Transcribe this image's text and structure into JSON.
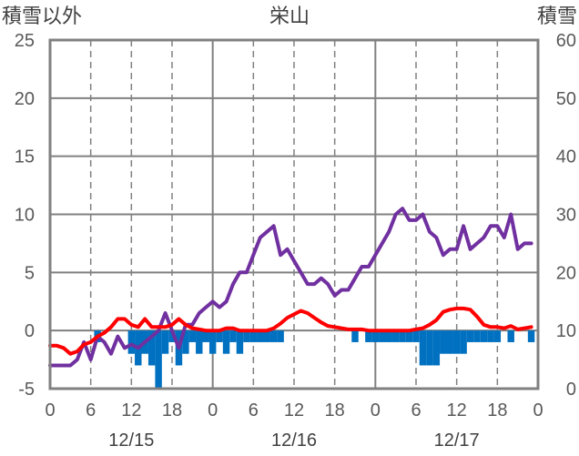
{
  "chart_data": {
    "type": "line+bar",
    "title": "栄山",
    "left_axis_title": "積雪以外",
    "right_axis_title": "積雪",
    "left_ylim": [
      -5,
      25
    ],
    "right_ylim": [
      0,
      60
    ],
    "left_ticks": [
      "25",
      "20",
      "15",
      "10",
      "5",
      "0",
      "-5"
    ],
    "right_ticks": [
      "60",
      "50",
      "40",
      "30",
      "20",
      "10",
      "0"
    ],
    "x_ticks": [
      "0",
      "6",
      "12",
      "18",
      "0",
      "6",
      "12",
      "18",
      "0",
      "6",
      "12",
      "18",
      "0"
    ],
    "dates": [
      "12/15",
      "12/16",
      "12/17"
    ],
    "x_range_hours": [
      0,
      72
    ],
    "grid": "dashed at 6h marks, solid at day boundaries and horizontal lines",
    "series": [
      {
        "name": "purple-line",
        "color": "#7030a0",
        "axis": "left",
        "x": [
          0,
          1,
          2,
          3,
          4,
          5,
          6,
          7,
          8,
          9,
          10,
          11,
          12,
          13,
          14,
          15,
          16,
          17,
          18,
          19,
          20,
          21,
          22,
          23,
          24,
          25,
          26,
          27,
          28,
          29,
          30,
          31,
          32,
          33,
          34,
          35,
          36,
          37,
          38,
          39,
          40,
          41,
          42,
          43,
          44,
          45,
          46,
          47,
          48,
          49,
          50,
          51,
          52,
          53,
          54,
          55,
          56,
          57,
          58,
          59,
          60,
          61,
          62,
          63,
          64,
          65,
          66,
          67,
          68,
          69,
          70,
          71
        ],
        "values": [
          -3,
          -3,
          -3,
          -3,
          -2.5,
          -1,
          -2.5,
          -0.5,
          -1,
          -2,
          -0.5,
          -1.5,
          -1.2,
          -1.5,
          -1,
          -0.5,
          0,
          1.5,
          0,
          -1.5,
          0.5,
          0.5,
          1.5,
          2,
          2.5,
          2,
          2.5,
          4,
          5,
          5,
          6.5,
          8,
          8.5,
          9,
          6.5,
          7,
          6,
          5,
          4,
          4,
          4.5,
          4,
          3,
          3.5,
          3.5,
          4.5,
          5.5,
          5.5,
          6.5,
          7.5,
          8.5,
          10,
          10.5,
          9.5,
          9.5,
          10,
          8.5,
          8,
          6.5,
          7,
          7,
          9,
          7,
          7.5,
          8,
          9,
          9,
          8,
          10,
          7,
          7.5,
          7.5
        ]
      },
      {
        "name": "red-line",
        "color": "#ff0000",
        "axis": "left",
        "x": [
          0,
          1,
          2,
          3,
          4,
          5,
          6,
          7,
          8,
          9,
          10,
          11,
          12,
          13,
          14,
          15,
          16,
          17,
          18,
          19,
          20,
          21,
          22,
          23,
          24,
          25,
          26,
          27,
          28,
          29,
          30,
          31,
          32,
          33,
          34,
          35,
          36,
          37,
          38,
          39,
          40,
          41,
          42,
          43,
          44,
          45,
          46,
          47,
          48,
          49,
          50,
          51,
          52,
          53,
          54,
          55,
          56,
          57,
          58,
          59,
          60,
          61,
          62,
          63,
          64,
          65,
          66,
          67,
          68,
          69,
          70,
          71
        ],
        "values": [
          -1.3,
          -1.3,
          -1.5,
          -2,
          -1.8,
          -1.2,
          -1,
          -0.5,
          -0.2,
          0.3,
          1,
          1,
          0.5,
          0.3,
          1,
          0.3,
          0.3,
          0.3,
          0.5,
          1,
          0.5,
          0.2,
          0.1,
          0,
          0,
          0,
          0.2,
          0.2,
          0,
          0,
          0,
          0,
          0,
          0.2,
          0.6,
          1.1,
          1.4,
          1.7,
          1.5,
          1.1,
          0.7,
          0.4,
          0.3,
          0.2,
          0.1,
          0.1,
          0.1,
          0,
          0,
          0,
          0,
          0,
          0,
          0,
          0.1,
          0.2,
          0.5,
          0.9,
          1.6,
          1.8,
          1.9,
          1.9,
          1.8,
          1.2,
          0.5,
          0.3,
          0.3,
          0.2,
          0.4,
          0.1,
          0.2,
          0.3
        ]
      }
    ],
    "bars": {
      "name": "snow-depth-change",
      "color": "#0070c0",
      "axis": "left",
      "bar_width_hours": 1,
      "x": [
        7,
        12,
        13,
        14,
        15,
        16,
        17,
        18,
        19,
        20,
        21,
        22,
        23,
        24,
        25,
        26,
        27,
        28,
        29,
        30,
        31,
        32,
        33,
        34,
        35,
        36,
        37,
        38,
        39,
        40,
        41,
        42,
        43,
        44,
        45,
        46,
        47,
        48,
        49,
        50,
        51,
        52,
        53,
        54,
        55,
        56,
        57,
        58,
        59,
        60,
        61,
        62,
        63,
        64,
        65,
        66,
        67,
        68,
        69,
        70,
        71
      ],
      "values": [
        -1,
        -2,
        -3,
        -2,
        -3,
        -5,
        -2,
        -1,
        -3,
        -2,
        -1,
        -2,
        -1,
        -2,
        -1,
        -2,
        -1,
        -2,
        -1,
        -1,
        -1,
        -1,
        -1,
        -1,
        0,
        0,
        0,
        0,
        0,
        0,
        0,
        0,
        0,
        0,
        -1,
        0,
        -1,
        -1,
        -1,
        -1,
        -1,
        -1,
        -1,
        -1,
        -3,
        -3,
        -3,
        -2,
        -2,
        -2,
        -2,
        -1,
        -1,
        -1,
        -1,
        -1,
        0,
        -1,
        0,
        0,
        -1
      ]
    }
  }
}
